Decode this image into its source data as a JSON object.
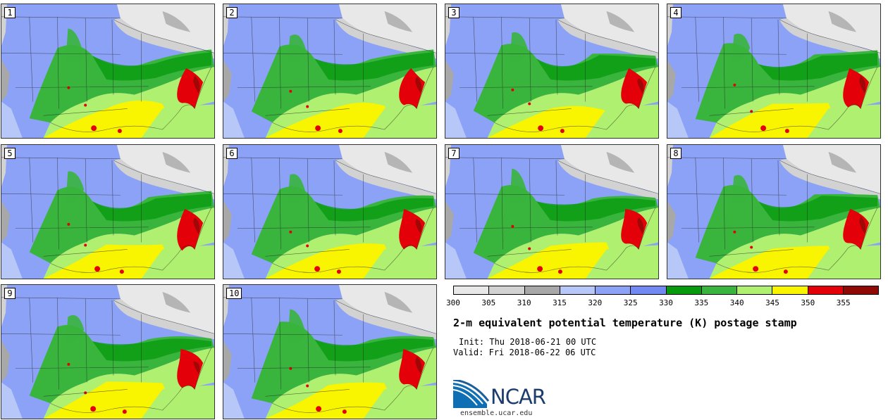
{
  "members": [
    "1",
    "2",
    "3",
    "4",
    "5",
    "6",
    "7",
    "8",
    "9",
    "10"
  ],
  "colorbar": {
    "colors": [
      "#e8e8e8",
      "#d2d2d2",
      "#a8a8a8",
      "#b7c8f8",
      "#8ca2f7",
      "#7288f2",
      "#069a0c",
      "#39b43d",
      "#b0f070",
      "#f9f400",
      "#e30008",
      "#8f0a07"
    ],
    "tick_labels": [
      "300",
      "305",
      "310",
      "315",
      "320",
      "325",
      "330",
      "335",
      "340",
      "345",
      "350",
      "355"
    ]
  },
  "title": "2-m equivalent potential temperature (K) postage stamp",
  "init_line": "Init: Thu 2018-06-21 00 UTC",
  "valid_line": "Valid: Fri 2018-06-22 06 UTC",
  "logo_text": "NCAR",
  "website": "ensemble.ucar.edu"
}
